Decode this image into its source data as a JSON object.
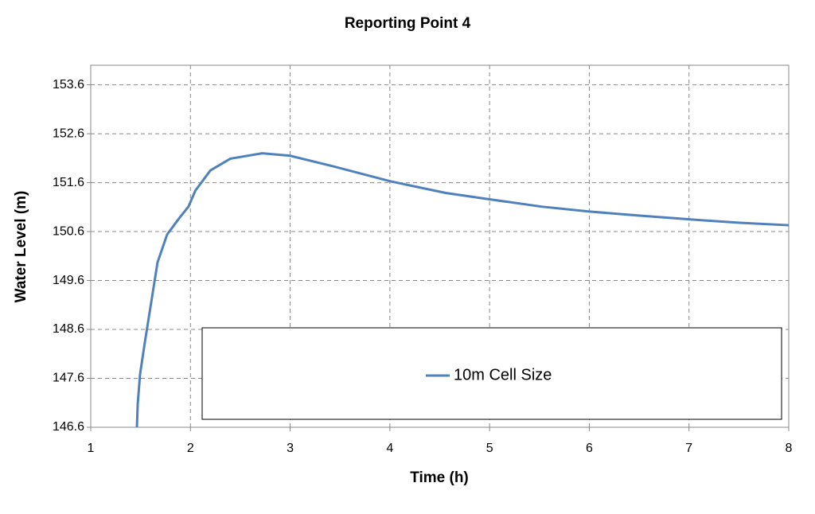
{
  "chart_data": {
    "type": "line",
    "title": "Reporting Point 4",
    "x_label": "Time (h)",
    "y_label": "Water Level (m)",
    "x": [
      1.463,
      1.471,
      1.495,
      1.543,
      1.607,
      1.67,
      1.766,
      1.886,
      1.98,
      2.05,
      2.2,
      2.4,
      2.72,
      3.0,
      3.44,
      4.0,
      4.56,
      5.0,
      5.52,
      6.0,
      6.48,
      7.0,
      7.51,
      8.0
    ],
    "series": [
      {
        "name": "10m Cell Size",
        "color": "#4f81bd",
        "values": [
          146.6,
          147.07,
          147.69,
          148.34,
          149.16,
          149.97,
          150.54,
          150.87,
          151.11,
          151.44,
          151.85,
          152.09,
          152.2,
          152.15,
          151.93,
          151.63,
          151.39,
          151.26,
          151.11,
          151.01,
          150.93,
          150.85,
          150.78,
          150.73
        ]
      }
    ],
    "xlim": [
      1,
      8
    ],
    "xticks": [
      1,
      2,
      3,
      4,
      5,
      6,
      7,
      8
    ],
    "ylim": [
      146.6,
      154.0
    ],
    "yticks": [
      146.6,
      147.6,
      148.6,
      149.6,
      150.6,
      151.6,
      152.6,
      153.6
    ],
    "grid": true,
    "legend": "lower-center"
  }
}
